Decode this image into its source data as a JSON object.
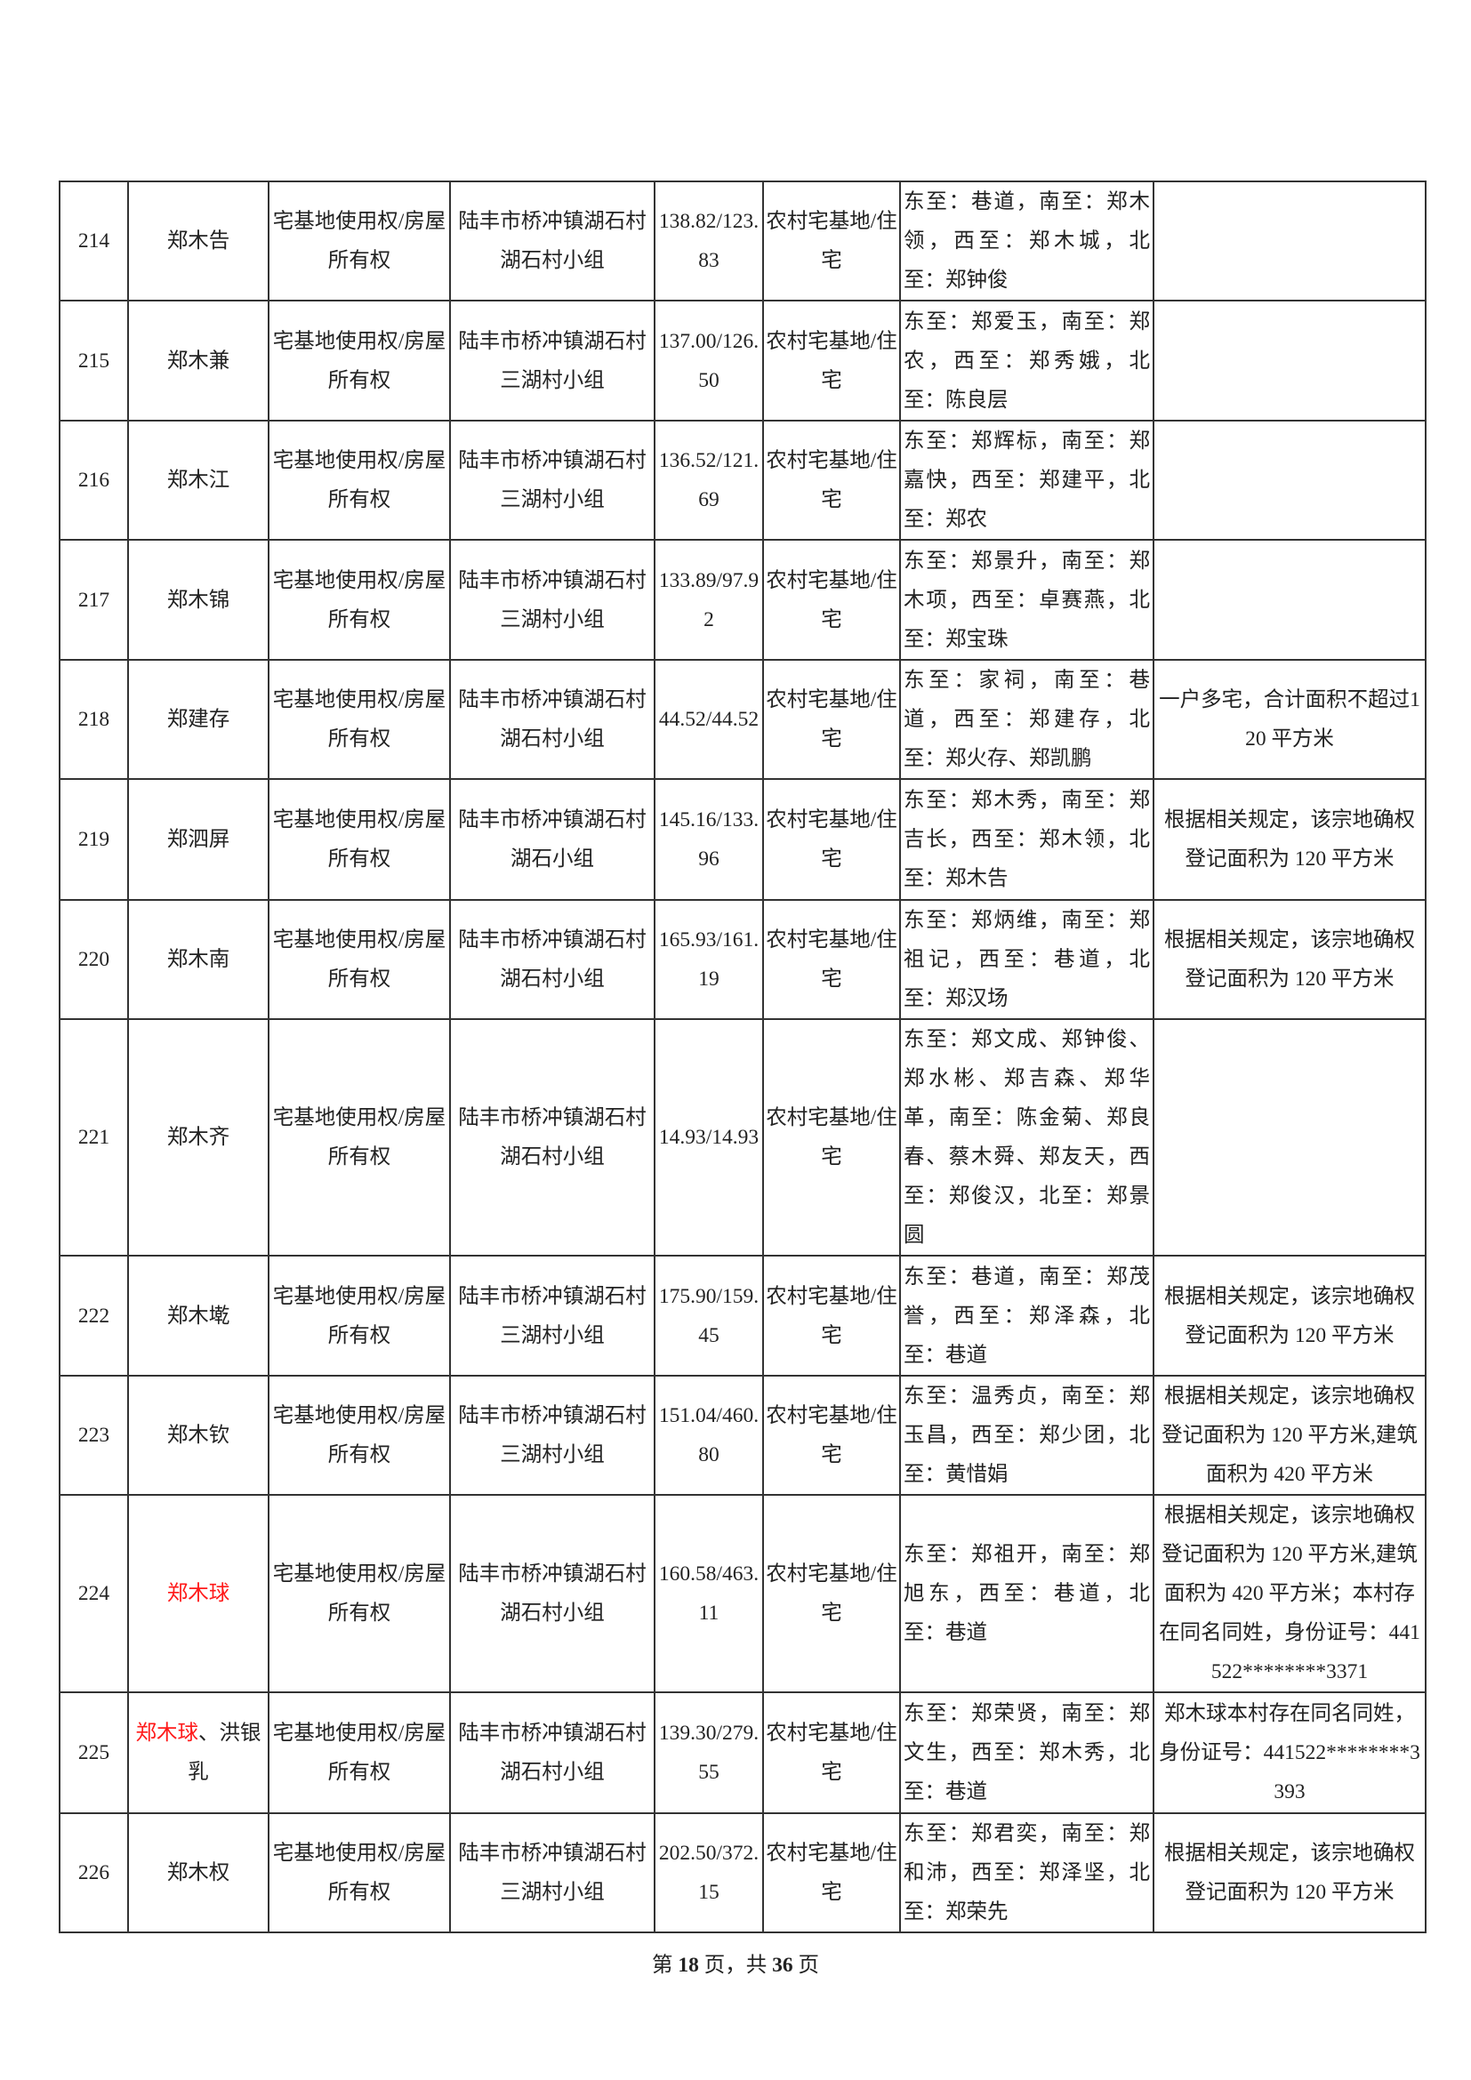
{
  "table": {
    "rows": [
      {
        "no": "214",
        "name": "郑木告",
        "right": "宅基地使用权/房屋所有权",
        "location": "陆丰市桥冲镇湖石村湖石村小组",
        "area": "138.82/123.83",
        "use": "农村宅基地/住宅",
        "boundary": "东至：巷道，南至：郑木领，西至：郑木城，北至：郑钟俊",
        "remark": ""
      },
      {
        "no": "215",
        "name": "郑木兼",
        "right": "宅基地使用权/房屋所有权",
        "location": "陆丰市桥冲镇湖石村三湖村小组",
        "area": "137.00/126.50",
        "use": "农村宅基地/住宅",
        "boundary": "东至：郑爱玉，南至：郑农，西至：郑秀娥，北至：陈良层",
        "remark": ""
      },
      {
        "no": "216",
        "name": "郑木江",
        "right": "宅基地使用权/房屋所有权",
        "location": "陆丰市桥冲镇湖石村三湖村小组",
        "area": "136.52/121.69",
        "use": "农村宅基地/住宅",
        "boundary": "东至：郑辉标，南至：郑嘉快，西至：郑建平，北至：郑农",
        "remark": ""
      },
      {
        "no": "217",
        "name": "郑木锦",
        "right": "宅基地使用权/房屋所有权",
        "location": "陆丰市桥冲镇湖石村三湖村小组",
        "area": "133.89/97.92",
        "use": "农村宅基地/住宅",
        "boundary": "东至：郑景升，南至：郑木项，西至：卓赛燕，北至：郑宝珠",
        "remark": ""
      },
      {
        "no": "218",
        "name": "郑建存",
        "right": "宅基地使用权/房屋所有权",
        "location": "陆丰市桥冲镇湖石村湖石村小组",
        "area": "44.52/44.52",
        "use": "农村宅基地/住宅",
        "boundary": "东至：家祠，南至：巷道，西至：郑建存，北至：郑火存、郑凯鹏",
        "remark": "一户多宅，合计面积不超过120 平方米"
      },
      {
        "no": "219",
        "name": "郑泗屏",
        "right": "宅基地使用权/房屋所有权",
        "location": "陆丰市桥冲镇湖石村湖石小组",
        "area": "145.16/133.96",
        "use": "农村宅基地/住宅",
        "boundary": "东至：郑木秀，南至：郑吉长，西至：郑木领，北至：郑木告",
        "remark": "根据相关规定，该宗地确权登记面积为 120 平方米"
      },
      {
        "no": "220",
        "name": "郑木南",
        "right": "宅基地使用权/房屋所有权",
        "location": "陆丰市桥冲镇湖石村湖石村小组",
        "area": "165.93/161.19",
        "use": "农村宅基地/住宅",
        "boundary": "东至：郑炳维，南至：郑祖记，西至：巷道，北至：郑汉场",
        "remark": "根据相关规定，该宗地确权登记面积为 120 平方米"
      },
      {
        "no": "221",
        "name": "郑木齐",
        "right": "宅基地使用权/房屋所有权",
        "location": "陆丰市桥冲镇湖石村湖石村小组",
        "area": "14.93/14.93",
        "use": "农村宅基地/住宅",
        "boundary": "东至：郑文成、郑钟俊、郑水彬、郑吉森、郑华革，南至：陈金菊、郑良春、蔡木舜、郑友天，西至：郑俊汉，北至：郑景圆",
        "remark": ""
      },
      {
        "no": "222",
        "name": "郑木墘",
        "right": "宅基地使用权/房屋所有权",
        "location": "陆丰市桥冲镇湖石村三湖村小组",
        "area": "175.90/159.45",
        "use": "农村宅基地/住宅",
        "boundary": "东至：巷道，南至：郑茂誉，西至：郑泽森，北至：巷道",
        "remark": "根据相关规定，该宗地确权登记面积为 120 平方米"
      },
      {
        "no": "223",
        "name": "郑木钦",
        "right": "宅基地使用权/房屋所有权",
        "location": "陆丰市桥冲镇湖石村三湖村小组",
        "area": "151.04/460.80",
        "use": "农村宅基地/住宅",
        "boundary": "东至：温秀贞，南至：郑玉昌，西至：郑少团，北至：黄惜娟",
        "remark": "根据相关规定，该宗地确权登记面积为 120 平方米,建筑面积为 420 平方米"
      },
      {
        "no": "224",
        "name": "郑木球",
        "name_red": "郑木球",
        "name_rest": "",
        "right": "宅基地使用权/房屋所有权",
        "location": "陆丰市桥冲镇湖石村湖石村小组",
        "area": "160.58/463.11",
        "use": "农村宅基地/住宅",
        "boundary": "东至：郑祖开，南至：郑旭东，西至：巷道，北至：巷道",
        "remark": "根据相关规定，该宗地确权登记面积为 120 平方米,建筑面积为 420 平方米；本村存在同名同姓，身份证号：441522********3371"
      },
      {
        "no": "225",
        "name_red": "郑木球",
        "name_rest": "、洪银乳",
        "right": "宅基地使用权/房屋所有权",
        "location": "陆丰市桥冲镇湖石村湖石村小组",
        "area": "139.30/279.55",
        "use": "农村宅基地/住宅",
        "boundary": "东至：郑荣贤，南至：郑文生，西至：郑木秀，北至：巷道",
        "remark": "郑木球本村存在同名同姓，身份证号：441522********3393"
      },
      {
        "no": "226",
        "name": "郑木权",
        "right": "宅基地使用权/房屋所有权",
        "location": "陆丰市桥冲镇湖石村三湖村小组",
        "area": "202.50/372.15",
        "use": "农村宅基地/住宅",
        "boundary": "东至：郑君奕，南至：郑和沛，西至：郑泽坚，北至：郑荣先",
        "remark": "根据相关规定，该宗地确权登记面积为 120 平方米"
      }
    ],
    "highlight_color": "#ff1a1a"
  },
  "footer": {
    "prefix": "第",
    "page": "18",
    "mid": "页，共",
    "total": "36",
    "suffix": "页"
  }
}
